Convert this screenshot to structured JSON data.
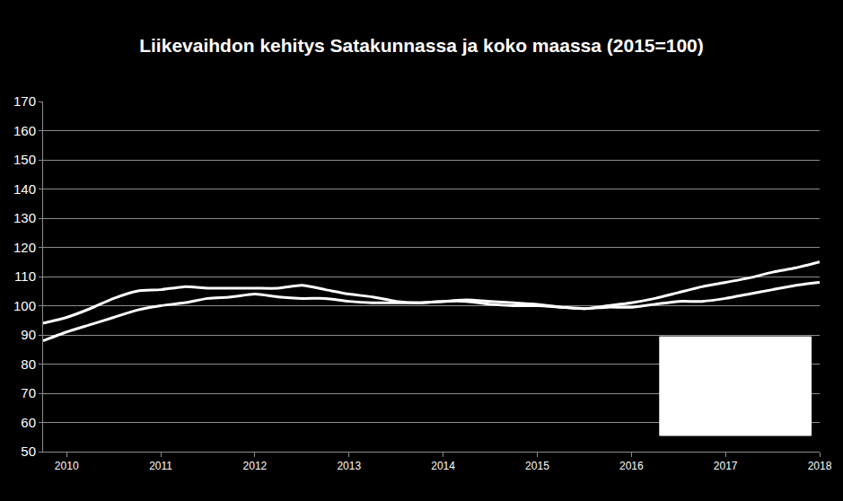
{
  "chart_data": {
    "type": "line",
    "title": "Liikevaihdon kehitys Satakunnassa ja koko maassa (2015=100)",
    "categories": [
      null,
      "2010",
      null,
      null,
      null,
      "2011",
      null,
      null,
      null,
      "2012",
      null,
      null,
      null,
      "2013",
      null,
      null,
      null,
      "2014",
      null,
      null,
      null,
      "2015",
      null,
      null,
      null,
      "2016",
      null,
      null,
      null,
      "2017",
      null,
      null,
      null,
      "2018"
    ],
    "series": [
      {
        "color": "#ffffff",
        "values": [
          94,
          96,
          99,
          102.5,
          105,
          105.5,
          106.5,
          106,
          106,
          106,
          106,
          107,
          105.5,
          104,
          103,
          101.5,
          101,
          101.5,
          102,
          101.5,
          101,
          100.5,
          99.5,
          99,
          100,
          101,
          102.5,
          104.5,
          106.5,
          108,
          109.5,
          111.5,
          113,
          115
        ]
      },
      {
        "color": "#ffffff",
        "values": [
          88,
          91,
          93.5,
          96,
          98.5,
          100,
          101,
          102.5,
          103,
          104,
          103,
          102.5,
          102.5,
          101.5,
          101,
          101,
          101,
          101.5,
          101.5,
          100.5,
          100,
          100,
          99.5,
          99,
          99.5,
          99.5,
          100.5,
          101.5,
          101.5,
          102.5,
          104,
          105.5,
          107,
          108
        ]
      }
    ],
    "ylim": [
      50,
      170
    ],
    "yticks": [
      50,
      60,
      70,
      80,
      90,
      100,
      110,
      120,
      130,
      140,
      150,
      160,
      170
    ],
    "grid": true
  }
}
